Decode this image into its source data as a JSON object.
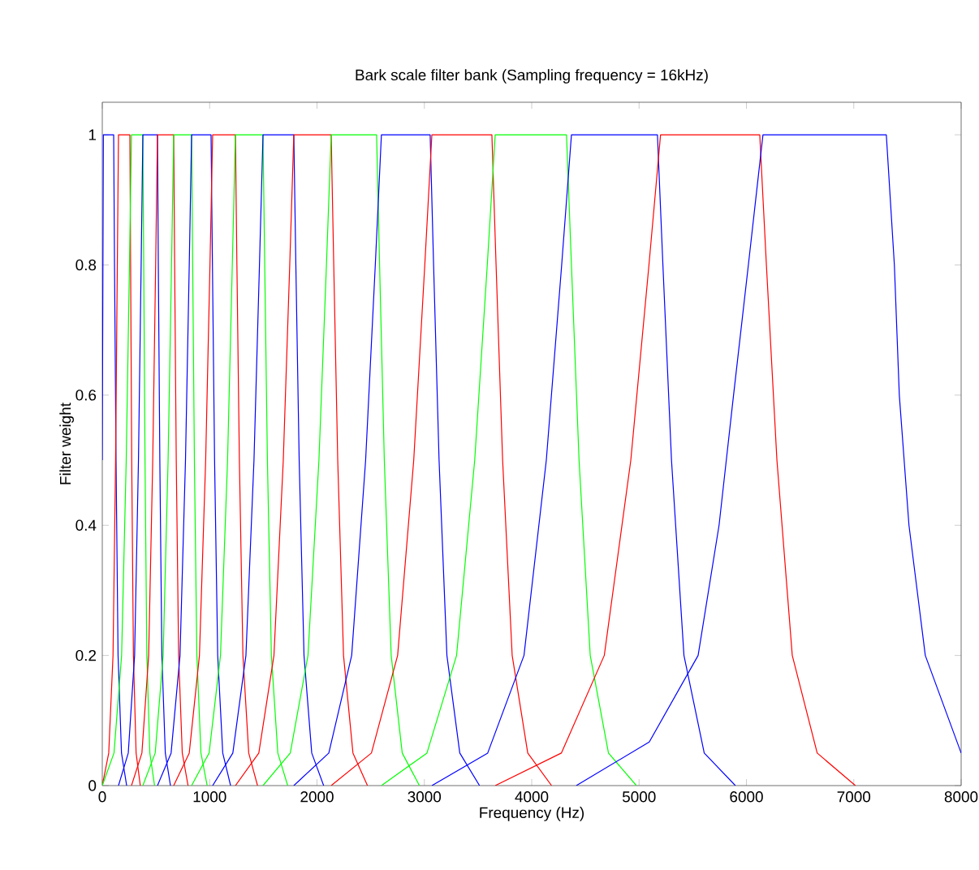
{
  "chart_data": {
    "type": "line",
    "title": "Bark scale filter bank (Sampling frequency = 16kHz)",
    "xlabel": "Frequency (Hz)",
    "ylabel": "Filter weight",
    "xlim": [
      0,
      8000
    ],
    "ylim": [
      0,
      1.05
    ],
    "xticks": [
      0,
      1000,
      2000,
      3000,
      4000,
      5000,
      6000,
      7000,
      8000
    ],
    "yticks": [
      0,
      {
        "value": 0.2,
        "label": "0.2"
      },
      {
        "value": 0.4,
        "label": "0.4"
      },
      {
        "value": 0.6,
        "label": "0.6"
      },
      {
        "value": 0.8,
        "label": "0.8"
      },
      1
    ],
    "grid": false,
    "marker": "none",
    "line_style": "solid",
    "series": [
      {
        "color": "#0000ff",
        "x": [
          0,
          10,
          106,
          114,
          128,
          147,
          179,
          227
        ],
        "values": [
          0.5,
          1,
          1,
          0.8,
          0.5,
          0.2,
          0.05,
          0
        ]
      },
      {
        "color": "#ff0000",
        "x": [
          0,
          60,
          100,
          124,
          140,
          151,
          257,
          264,
          274,
          290,
          315,
          354
        ],
        "values": [
          0,
          0.05,
          0.2,
          0.5,
          0.8,
          1,
          1,
          0.8,
          0.5,
          0.2,
          0.05,
          0
        ]
      },
      {
        "color": "#00ff00",
        "x": [
          0,
          109,
          180,
          223,
          253,
          272,
          378,
          386,
          398,
          415,
          443,
          487
        ],
        "values": [
          0,
          0.05,
          0.2,
          0.5,
          0.8,
          1,
          1,
          0.8,
          0.5,
          0.2,
          0.05,
          0
        ]
      },
      {
        "color": "#0000ff",
        "x": [
          151,
          242,
          301,
          337,
          362,
          378,
          514,
          522,
          536,
          555,
          587,
          635
        ],
        "values": [
          0,
          0.05,
          0.2,
          0.5,
          0.8,
          1,
          1,
          0.8,
          0.5,
          0.2,
          0.05,
          0
        ]
      },
      {
        "color": "#ff0000",
        "x": [
          272,
          369,
          432,
          470,
          497,
          514,
          665,
          674,
          689,
          711,
          745,
          799
        ],
        "values": [
          0,
          0.05,
          0.2,
          0.5,
          0.8,
          1,
          1,
          0.8,
          0.5,
          0.2,
          0.05,
          0
        ]
      },
      {
        "color": "#00ff00",
        "x": [
          378,
          493,
          567,
          613,
          645,
          665,
          832,
          842,
          858,
          881,
          919,
          977
        ],
        "values": [
          0,
          0.05,
          0.2,
          0.5,
          0.8,
          1,
          1,
          0.8,
          0.5,
          0.2,
          0.05,
          0
        ]
      },
      {
        "color": "#0000ff",
        "x": [
          514,
          641,
          724,
          775,
          810,
          832,
          1013,
          1026,
          1046,
          1075,
          1122,
          1195
        ],
        "values": [
          0,
          0.05,
          0.2,
          0.5,
          0.8,
          1,
          1,
          0.8,
          0.5,
          0.2,
          0.05,
          0
        ]
      },
      {
        "color": "#ff0000",
        "x": [
          665,
          810,
          905,
          963,
          1003,
          1028,
          1240,
          1254,
          1277,
          1310,
          1364,
          1446
        ],
        "values": [
          0,
          0.05,
          0.2,
          0.5,
          0.8,
          1,
          1,
          0.8,
          0.5,
          0.2,
          0.05,
          0
        ]
      },
      {
        "color": "#00ff00",
        "x": [
          832,
          995,
          1101,
          1167,
          1211,
          1240,
          1497,
          1513,
          1538,
          1575,
          1635,
          1727
        ],
        "values": [
          0,
          0.05,
          0.2,
          0.5,
          0.8,
          1,
          1,
          0.8,
          0.5,
          0.2,
          0.05,
          0
        ]
      },
      {
        "color": "#0000ff",
        "x": [
          1028,
          1216,
          1338,
          1413,
          1464,
          1497,
          1784,
          1803,
          1834,
          1879,
          1951,
          2062
        ],
        "values": [
          0,
          0.05,
          0.2,
          0.5,
          0.8,
          1,
          1,
          0.8,
          0.5,
          0.2,
          0.05,
          0
        ]
      },
      {
        "color": "#ff0000",
        "x": [
          1240,
          1458,
          1599,
          1686,
          1746,
          1784,
          2132,
          2156,
          2193,
          2247,
          2335,
          2470
        ],
        "values": [
          0,
          0.05,
          0.2,
          0.5,
          0.8,
          1,
          1,
          0.8,
          0.5,
          0.2,
          0.05,
          0
        ]
      },
      {
        "color": "#00ff00",
        "x": [
          1497,
          1751,
          1916,
          2018,
          2088,
          2132,
          2555,
          2583,
          2627,
          2691,
          2794,
          2954
        ],
        "values": [
          0,
          0.05,
          0.2,
          0.5,
          0.8,
          1,
          1,
          0.8,
          0.5,
          0.2,
          0.05,
          0
        ]
      },
      {
        "color": "#0000ff",
        "x": [
          1784,
          2110,
          2323,
          2453,
          2543,
          2600,
          3054,
          3086,
          3137,
          3210,
          3330,
          3514
        ],
        "values": [
          0,
          0.05,
          0.2,
          0.5,
          0.8,
          1,
          1,
          0.8,
          0.5,
          0.2,
          0.05,
          0
        ]
      },
      {
        "color": "#ff0000",
        "x": [
          2132,
          2507,
          2751,
          2901,
          3004,
          3070,
          3629,
          3668,
          3729,
          3818,
          3963,
          4185
        ],
        "values": [
          0,
          0.05,
          0.2,
          0.5,
          0.8,
          1,
          1,
          0.8,
          0.5,
          0.2,
          0.05,
          0
        ]
      },
      {
        "color": "#00ff00",
        "x": [
          2600,
          3024,
          3300,
          3469,
          3586,
          3660,
          4324,
          4370,
          4441,
          4545,
          4715,
          4975
        ],
        "values": [
          0,
          0.05,
          0.2,
          0.5,
          0.8,
          1,
          1,
          0.8,
          0.5,
          0.2,
          0.05,
          0
        ]
      },
      {
        "color": "#0000ff",
        "x": [
          3070,
          3590,
          3928,
          4136,
          4279,
          4370,
          5171,
          5222,
          5302,
          5418,
          5607,
          5897
        ],
        "values": [
          0,
          0.05,
          0.2,
          0.5,
          0.8,
          1,
          1,
          0.8,
          0.5,
          0.2,
          0.05,
          0
        ]
      },
      {
        "color": "#ff0000",
        "x": [
          3660,
          4276,
          4676,
          4923,
          5092,
          5200,
          6124,
          6186,
          6284,
          6427,
          6659,
          7015
        ],
        "values": [
          0,
          0.05,
          0.2,
          0.5,
          0.8,
          1,
          1,
          0.8,
          0.5,
          0.2,
          0.05,
          0
        ]
      },
      {
        "color": "#0000ff",
        "x": [
          4415,
          5095,
          5550,
          5745,
          5880,
          6018,
          6154,
          7303,
          7378,
          7424,
          7514,
          7666,
          8000
        ],
        "values": [
          0,
          0.067,
          0.2,
          0.4,
          0.6,
          0.8,
          1,
          1,
          0.8,
          0.6,
          0.4,
          0.2,
          0.05
        ]
      }
    ]
  }
}
